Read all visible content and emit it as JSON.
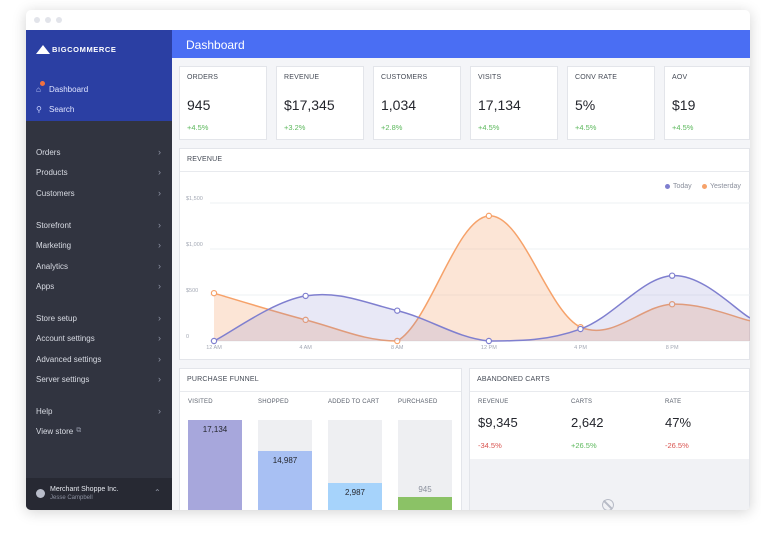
{
  "brand": {
    "logo_prefix": "BIG",
    "logo_suffix": "COMMERCE"
  },
  "sidebar": {
    "top_links": [
      {
        "label": "Dashboard",
        "icon": "home-icon"
      },
      {
        "label": "Search",
        "icon": "search-icon"
      }
    ],
    "groups": [
      [
        "Orders",
        "Products",
        "Customers"
      ],
      [
        "Storefront",
        "Marketing",
        "Analytics",
        "Apps"
      ],
      [
        "Store setup",
        "Account settings",
        "Advanced settings",
        "Server settings"
      ]
    ],
    "help": "Help",
    "view_store": "View store",
    "footer": {
      "merchant": "Merchant Shoppe Inc.",
      "user": "Jesse Campbell"
    }
  },
  "header": {
    "title": "Dashboard"
  },
  "stats": [
    {
      "label": "ORDERS",
      "value": "945",
      "change": "+4.5%"
    },
    {
      "label": "REVENUE",
      "value": "$17,345",
      "change": "+3.2%"
    },
    {
      "label": "CUSTOMERS",
      "value": "1,034",
      "change": "+2.8%"
    },
    {
      "label": "VISITS",
      "value": "17,134",
      "change": "+4.5%"
    },
    {
      "label": "CONV RATE",
      "value": "5%",
      "change": "+4.5%"
    },
    {
      "label": "AOV",
      "value": "$19",
      "change": "+4.5%"
    }
  ],
  "chart_data": {
    "type": "area",
    "title": "REVENUE",
    "x": [
      "12 AM",
      "4 AM",
      "8 AM",
      "12 PM",
      "4 PM",
      "8 PM"
    ],
    "y_ticks": [
      "0",
      "$500",
      "$1,000",
      "$1,500"
    ],
    "ylim": [
      0,
      1500
    ],
    "legend_position": "top-right",
    "series": [
      {
        "name": "Today",
        "color": "#7f7fcf",
        "x_hours": [
          0,
          4,
          8,
          12,
          16,
          20
        ],
        "values": [
          0,
          490,
          330,
          0,
          130,
          710
        ]
      },
      {
        "name": "Yesterday",
        "color": "#f6a26a",
        "x_hours": [
          0,
          4,
          8,
          12,
          16,
          20
        ],
        "values": [
          520,
          230,
          0,
          1360,
          150,
          400
        ]
      }
    ]
  },
  "funnel": {
    "title": "PURCHASE FUNNEL",
    "columns": [
      {
        "label": "VISITED",
        "value": "17,134",
        "fraction": 1.0,
        "color": "#a7a7dc"
      },
      {
        "label": "SHOPPED",
        "value": "14,987",
        "fraction": 0.665,
        "color": "#a8c0f3"
      },
      {
        "label": "ADDED TO CART",
        "value": "2,987",
        "fraction": 0.335,
        "color": "#a6d3fb"
      },
      {
        "label": "PURCHASED",
        "value": "945",
        "fraction": 0.18,
        "color": "#8bc266"
      }
    ]
  },
  "abandoned": {
    "title": "ABANDONED CARTS",
    "items": [
      {
        "label": "REVENUE",
        "value": "$9,345",
        "change": "-34.5%",
        "color": "#d9534f"
      },
      {
        "label": "CARTS",
        "value": "2,642",
        "change": "+26.5%",
        "color": "#5cb85c"
      },
      {
        "label": "RATE",
        "value": "47%",
        "change": "-26.5%",
        "color": "#d9534f"
      }
    ]
  }
}
